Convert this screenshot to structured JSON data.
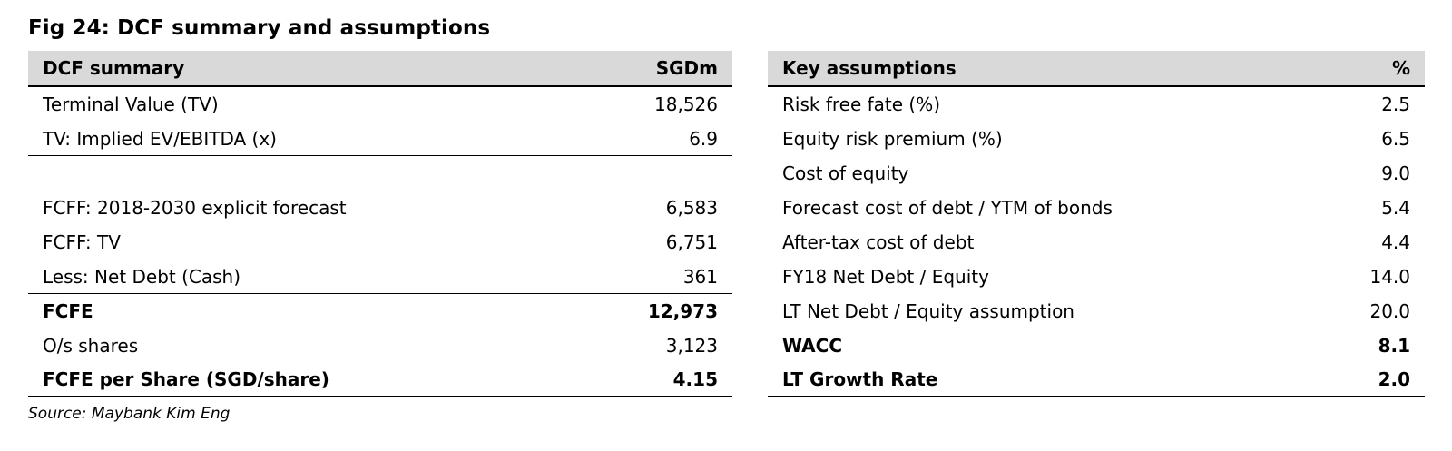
{
  "figure": {
    "title": "Fig 24: DCF summary and assumptions",
    "source": "Source: Maybank Kim Eng"
  },
  "dcf_summary": {
    "header_label": "DCF summary",
    "header_unit": "SGDm",
    "rows": [
      {
        "label": "Terminal Value (TV)",
        "value": "18,526"
      },
      {
        "label": "TV: Implied EV/EBITDA (x)",
        "value": "6.9"
      },
      {
        "label": "FCFF: 2018-2030 explicit forecast",
        "value": "6,583"
      },
      {
        "label": "FCFF: TV",
        "value": "6,751"
      },
      {
        "label": "Less: Net Debt (Cash)",
        "value": "361"
      },
      {
        "label": "FCFE",
        "value": "12,973"
      },
      {
        "label": "O/s shares",
        "value": "3,123"
      },
      {
        "label": "FCFE per Share (SGD/share)",
        "value": "4.15"
      }
    ]
  },
  "key_assumptions": {
    "header_label": "Key assumptions",
    "header_unit": "%",
    "rows": [
      {
        "label": "Risk free fate (%)",
        "value": "2.5"
      },
      {
        "label": "Equity risk premium (%)",
        "value": "6.5"
      },
      {
        "label": "Cost of equity",
        "value": "9.0"
      },
      {
        "label": "Forecast cost of debt / YTM of bonds",
        "value": "5.4"
      },
      {
        "label": "After-tax cost of debt",
        "value": "4.4"
      },
      {
        "label": "FY18 Net Debt / Equity",
        "value": "14.0"
      },
      {
        "label": "LT Net Debt / Equity assumption",
        "value": "20.0"
      },
      {
        "label": "WACC",
        "value": "8.1"
      },
      {
        "label": "LT Growth Rate",
        "value": "2.0"
      }
    ]
  }
}
